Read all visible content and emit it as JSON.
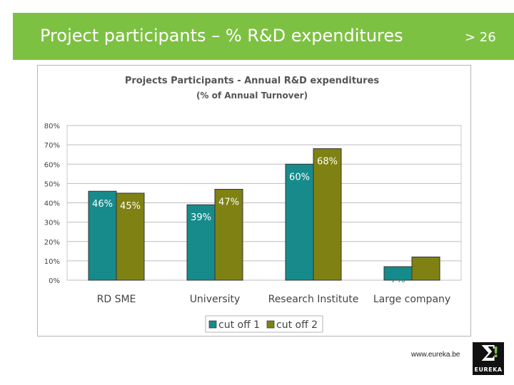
{
  "header": {
    "title": "Project participants – % R&D expenditures",
    "page_number": "> 26",
    "background_color": "#7dc142"
  },
  "footer": {
    "url": "www.eureka.be",
    "logo_text": "EUREKA",
    "logo_symbol": "Σ",
    "logo_mark": "!"
  },
  "chart_data": {
    "type": "bar",
    "title": "Projects Participants - Annual R&D expenditures",
    "subtitle": "(% of Annual Turnover)",
    "categories": [
      "RD SME",
      "University",
      "Research Institute",
      "Large company"
    ],
    "series": [
      {
        "name": "cut off 1",
        "color": "#178b8b",
        "values": [
          46,
          39,
          60,
          7
        ],
        "labels": [
          "46%",
          "39%",
          "60%",
          "7%"
        ]
      },
      {
        "name": "cut off 2",
        "color": "#7f8212",
        "values": [
          45,
          47,
          68,
          12
        ],
        "labels": [
          "45%",
          "47%",
          "68%",
          "12%"
        ]
      }
    ],
    "yticks": [
      "0%",
      "10%",
      "20%",
      "30%",
      "40%",
      "50%",
      "60%",
      "70%",
      "80%"
    ],
    "ylim": [
      0,
      80
    ],
    "grid": true,
    "legend": "bottom"
  }
}
